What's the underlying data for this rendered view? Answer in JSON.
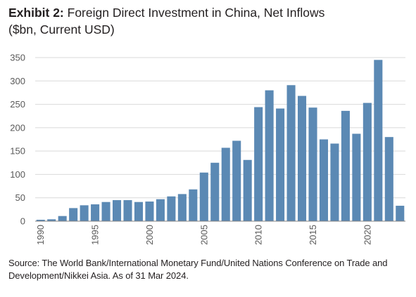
{
  "header": {
    "title_lead": "Exhibit 2:",
    "title_rest": " Foreign Direct Investment in China, Net Inflows",
    "subtitle": "($bn, Current USD)"
  },
  "footer": {
    "source": "Source: The World Bank/International Monetary Fund/United Nations Conference on Trade and Development/Nikkei Asia. As of 31 Mar 2024."
  },
  "colors": {
    "bar": "#5b89b4",
    "gridline": "#d9d9d9",
    "axis": "#808080"
  },
  "chart_data": {
    "type": "bar",
    "title": "Exhibit 2: Foreign Direct Investment in China, Net Inflows",
    "subtitle": "($bn, Current USD)",
    "xlabel": "",
    "ylabel": "",
    "ylim": [
      0,
      350
    ],
    "yticks": [
      0,
      50,
      100,
      150,
      200,
      250,
      300,
      350
    ],
    "xtick_labels": [
      "1990",
      "1995",
      "2000",
      "2005",
      "2010",
      "2015",
      "2020"
    ],
    "grid": true,
    "legend": "none",
    "categories": [
      "1990",
      "1991",
      "1992",
      "1993",
      "1994",
      "1995",
      "1996",
      "1997",
      "1998",
      "1999",
      "2000",
      "2001",
      "2002",
      "2003",
      "2004",
      "2005",
      "2006",
      "2007",
      "2008",
      "2009",
      "2010",
      "2011",
      "2012",
      "2013",
      "2014",
      "2015",
      "2016",
      "2017",
      "2018",
      "2019",
      "2020",
      "2021",
      "2022",
      "2023"
    ],
    "values": [
      3,
      4,
      11,
      28,
      34,
      36,
      41,
      45,
      45,
      41,
      42,
      47,
      53,
      58,
      68,
      104,
      125,
      157,
      172,
      131,
      244,
      280,
      241,
      291,
      268,
      243,
      175,
      166,
      236,
      187,
      253,
      345,
      180,
      33
    ]
  }
}
